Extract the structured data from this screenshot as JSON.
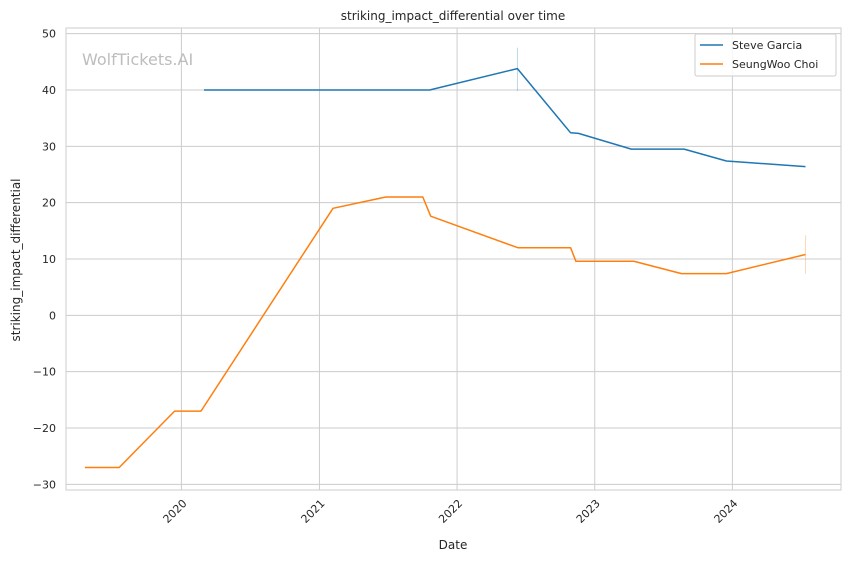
{
  "chart_data": {
    "type": "line",
    "title": "striking_impact_differential over time",
    "xlabel": "Date",
    "ylabel": "striking_impact_differential",
    "watermark": "WolfTickets.AI",
    "x_ticks": [
      "2020",
      "2021",
      "2022",
      "2023",
      "2024"
    ],
    "y_ticks": [
      50,
      40,
      30,
      20,
      10,
      0,
      -10,
      -20,
      -30
    ],
    "ylim": [
      -31,
      51
    ],
    "xlim": [
      "2019-03-01",
      "2024-10-15"
    ],
    "grid": true,
    "legend_position": "top-right",
    "series": [
      {
        "name": "Steve Garcia",
        "color": "#1f77b4",
        "points": [
          [
            "2020-03-01",
            40.0
          ],
          [
            "2021-10-20",
            40.0
          ],
          [
            "2022-06-10",
            43.8
          ],
          [
            "2022-10-29",
            32.4
          ],
          [
            "2022-11-19",
            32.3
          ],
          [
            "2023-04-08",
            29.5
          ],
          [
            "2023-08-26",
            29.5
          ],
          [
            "2023-12-16",
            27.4
          ],
          [
            "2024-07-13",
            26.4
          ]
        ],
        "error_bars": [
          {
            "x": "2022-06-10",
            "low": 39.8,
            "high": 47.5
          }
        ]
      },
      {
        "name": "SeungWoo Choi",
        "color": "#ff7f0e",
        "points": [
          [
            "2019-04-20",
            -27.0
          ],
          [
            "2019-07-20",
            -27.0
          ],
          [
            "2019-12-14",
            -17.0
          ],
          [
            "2020-02-22",
            -17.0
          ],
          [
            "2021-02-06",
            19.0
          ],
          [
            "2021-06-26",
            21.0
          ],
          [
            "2021-10-02",
            21.0
          ],
          [
            "2021-10-23",
            17.6
          ],
          [
            "2022-06-11",
            12.0
          ],
          [
            "2022-10-29",
            12.0
          ],
          [
            "2022-11-12",
            9.6
          ],
          [
            "2023-04-15",
            9.6
          ],
          [
            "2023-08-19",
            7.4
          ],
          [
            "2023-12-16",
            7.4
          ],
          [
            "2024-07-13",
            10.8
          ]
        ],
        "error_bars": [
          {
            "x": "2024-07-13",
            "low": 7.4,
            "high": 14.2
          }
        ]
      }
    ]
  }
}
